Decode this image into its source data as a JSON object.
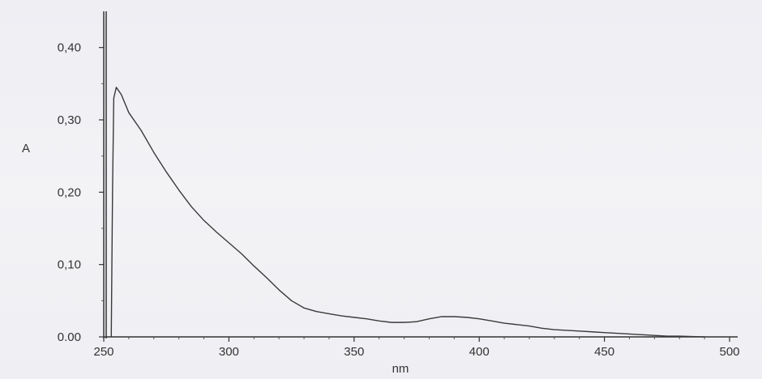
{
  "chart_data": {
    "type": "line",
    "title": "",
    "xlabel": "nm",
    "ylabel": "A",
    "xlim": [
      250,
      500
    ],
    "ylim": [
      0,
      0.45
    ],
    "grid": false,
    "x_ticks": [
      {
        "value": 250,
        "label": "250"
      },
      {
        "value": 300,
        "label": "300"
      },
      {
        "value": 350,
        "label": "350"
      },
      {
        "value": 400,
        "label": "400"
      },
      {
        "value": 450,
        "label": "450"
      },
      {
        "value": 500,
        "label": "500"
      }
    ],
    "y_ticks": [
      {
        "value": 0.0,
        "label": "0.00"
      },
      {
        "value": 0.1,
        "label": "0,10"
      },
      {
        "value": 0.2,
        "label": "0,20"
      },
      {
        "value": 0.3,
        "label": "0,30"
      },
      {
        "value": 0.4,
        "label": "0,40"
      }
    ],
    "series": [
      {
        "x": [
          253,
          253.5,
          254,
          255,
          257,
          260,
          265,
          270,
          275,
          280,
          285,
          290,
          295,
          300,
          305,
          310,
          315,
          320,
          325,
          330,
          335,
          340,
          345,
          350,
          355,
          360,
          365,
          370,
          375,
          380,
          385,
          390,
          395,
          400,
          405,
          410,
          415,
          420,
          425,
          430,
          435,
          440,
          445,
          450,
          455,
          460,
          465,
          470,
          475,
          480,
          485,
          490
        ],
        "y": [
          0.0,
          0.2,
          0.33,
          0.345,
          0.335,
          0.31,
          0.285,
          0.255,
          0.228,
          0.203,
          0.18,
          0.161,
          0.145,
          0.13,
          0.115,
          0.098,
          0.082,
          0.065,
          0.05,
          0.04,
          0.035,
          0.032,
          0.029,
          0.027,
          0.025,
          0.022,
          0.02,
          0.02,
          0.021,
          0.025,
          0.028,
          0.028,
          0.027,
          0.025,
          0.022,
          0.019,
          0.017,
          0.015,
          0.012,
          0.01,
          0.009,
          0.008,
          0.007,
          0.006,
          0.005,
          0.004,
          0.003,
          0.002,
          0.001,
          0.001,
          0.0005,
          0.0
        ]
      }
    ]
  }
}
